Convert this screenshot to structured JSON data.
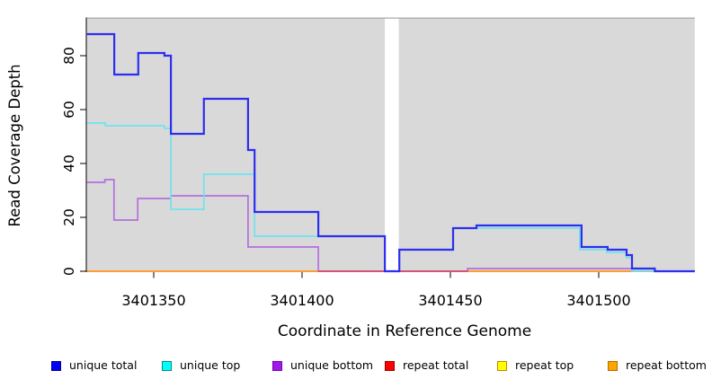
{
  "chart_data": {
    "type": "line",
    "step": true,
    "title": "",
    "xlabel": "Coordinate in Reference Genome",
    "ylabel": "Read Coverage Depth",
    "xlim": [
      3401327.5,
      3401532.4
    ],
    "ylim": [
      0,
      94
    ],
    "x_ticks": [
      3401350,
      3401400,
      3401450,
      3401500
    ],
    "y_ticks": [
      0,
      20,
      40,
      60,
      80
    ],
    "plot_bg": "#d9d9d9",
    "grid": "off",
    "legend_position": "bottom",
    "no_data_gap": {
      "x_start": 3401427.9,
      "x_end": 3401432.6,
      "color": "#ffffff"
    },
    "series": [
      {
        "name": "unique total",
        "color": "#2e2eef",
        "line_width": 2.2,
        "legend_fill": "#0000f0",
        "legend_border": "#000099",
        "steps": [
          [
            3401327.5,
            88
          ],
          [
            3401336.7,
            73
          ],
          [
            3401344.8,
            81
          ],
          [
            3401353.6,
            80
          ],
          [
            3401355.8,
            51
          ],
          [
            3401366.9,
            64
          ],
          [
            3401381.8,
            45
          ],
          [
            3401384.0,
            22
          ],
          [
            3401405.5,
            13
          ],
          [
            3401427.9,
            0
          ],
          [
            3401432.8,
            8
          ],
          [
            3401450.9,
            16
          ],
          [
            3401458.8,
            17
          ],
          [
            3401494.2,
            9
          ],
          [
            3401503.0,
            8
          ],
          [
            3401509.4,
            6
          ],
          [
            3401511.2,
            1
          ],
          [
            3401518.9,
            0
          ],
          [
            3401532.4,
            0
          ]
        ]
      },
      {
        "name": "unique top",
        "color": "#6fe3ee",
        "line_width": 1.7,
        "legend_fill": "#00ffff",
        "legend_border": "#008b8b",
        "steps": [
          [
            3401327.5,
            55
          ],
          [
            3401333.7,
            54
          ],
          [
            3401353.6,
            53
          ],
          [
            3401355.8,
            23
          ],
          [
            3401366.9,
            36
          ],
          [
            3401384.0,
            13
          ],
          [
            3401427.9,
            0
          ],
          [
            3401432.8,
            8
          ],
          [
            3401450.9,
            16
          ],
          [
            3401493.6,
            8
          ],
          [
            3401502.7,
            7
          ],
          [
            3401509.4,
            5
          ],
          [
            3401511.2,
            0
          ],
          [
            3401532.4,
            0
          ]
        ]
      },
      {
        "name": "unique bottom",
        "color": "#b46fdd",
        "line_width": 1.7,
        "legend_fill": "#a01ae8",
        "legend_border": "#7a00b4",
        "steps": [
          [
            3401327.5,
            33
          ],
          [
            3401333.5,
            34
          ],
          [
            3401336.6,
            19
          ],
          [
            3401344.6,
            27
          ],
          [
            3401355.8,
            28
          ],
          [
            3401381.8,
            9
          ],
          [
            3401405.5,
            0
          ],
          [
            3401455.8,
            1
          ],
          [
            3401518.9,
            0
          ],
          [
            3401532.4,
            0
          ]
        ]
      },
      {
        "name": "repeat total",
        "color": "#d24a63",
        "line_width": 1.4,
        "legend_fill": "#ff0000",
        "legend_border": "#990000",
        "visible_range": [
          3401405.5,
          3401456.0
        ],
        "steps": [
          [
            3401327.5,
            0
          ],
          [
            3401532.4,
            0
          ]
        ]
      },
      {
        "name": "repeat top",
        "color": "#f5f500",
        "line_width": 1.4,
        "legend_fill": "#ffff00",
        "legend_border": "#c28a00",
        "steps": [
          [
            3401327.5,
            0
          ],
          [
            3401532.4,
            0
          ]
        ]
      },
      {
        "name": "repeat bottom",
        "color": "#ff9d2e",
        "line_width": 2.0,
        "legend_fill": "#ffa500",
        "legend_border": "#b36b00",
        "steps": [
          [
            3401327.5,
            0
          ],
          [
            3401532.4,
            0
          ]
        ]
      }
    ],
    "draw_order": [
      4,
      5,
      2,
      3,
      1,
      0
    ]
  }
}
